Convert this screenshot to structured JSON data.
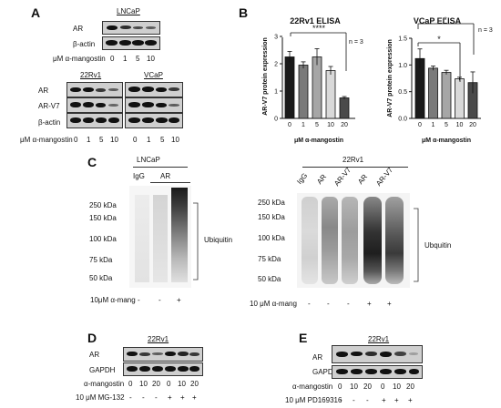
{
  "panels": {
    "A": "A",
    "B": "B",
    "C": "C",
    "D": "D",
    "E": "E"
  },
  "panelA": {
    "top_cell": "LNCaP",
    "top_rows": [
      "AR",
      "β-actin"
    ],
    "top_treatment": "μM α-mangostin",
    "top_doses": [
      "0",
      "1",
      "5",
      "10"
    ],
    "bottom_cells": [
      "22Rv1",
      "VCaP"
    ],
    "bottom_rows": [
      "AR",
      "AR-V7",
      "β-actin"
    ],
    "bottom_treatment": "μM α-mangostin",
    "bottom_doses": [
      "0",
      "1",
      "5",
      "10",
      "0",
      "1",
      "5",
      "10"
    ]
  },
  "chart_data": [
    {
      "type": "bar",
      "title": "22Rv1 ELISA",
      "xlabel": "μM α-mangostin",
      "ylabel": "AR-V7 protein expression",
      "categories": [
        "0",
        "1",
        "5",
        "10",
        "20"
      ],
      "values": [
        2.25,
        1.95,
        2.25,
        1.75,
        0.75
      ],
      "errors": [
        0.2,
        0.12,
        0.3,
        0.15,
        0.05
      ],
      "ylim": [
        0,
        3
      ],
      "yticks": [
        "0",
        "1",
        "2",
        "3"
      ],
      "significance": "****",
      "n_label": "n = 3",
      "colors": [
        "#1a1a1a",
        "#7a7a7a",
        "#a6a6a6",
        "#d9d9d9",
        "#4a4a4a"
      ]
    },
    {
      "type": "bar",
      "title": "VCaP ELISA",
      "xlabel": "μM α-mangostin",
      "ylabel": "AR-V7 protein expression",
      "categories": [
        "0",
        "1",
        "5",
        "10",
        "20"
      ],
      "values": [
        1.12,
        0.94,
        0.86,
        0.74,
        0.67
      ],
      "errors": [
        0.18,
        0.04,
        0.04,
        0.03,
        0.2
      ],
      "ylim": [
        0,
        1.5
      ],
      "yticks": [
        "0.0",
        "0.5",
        "1.0",
        "1.5"
      ],
      "significance": [
        "*",
        "*"
      ],
      "n_label": "n = 3",
      "colors": [
        "#1a1a1a",
        "#7a7a7a",
        "#a6a6a6",
        "#d9d9d9",
        "#4a4a4a"
      ]
    }
  ],
  "panelC": {
    "left_cell": "LNCaP",
    "left_lanes": [
      "IgG",
      "AR"
    ],
    "left_markers": [
      "250 kDa",
      "150 kDa",
      "100 kDa",
      "75 kDa",
      "50 kDa"
    ],
    "left_ubiquitin": "Ubiquitin",
    "left_treatment": "10μM α-mang",
    "left_signs": [
      "-",
      "-",
      "+"
    ],
    "right_cell": "22Rv1",
    "right_lanes": [
      "IgG",
      "AR",
      "AR-V7",
      "AR",
      "AR-V7"
    ],
    "right_markers": [
      "250 kDa",
      "150 kDa",
      "100 kDa",
      "75 kDa",
      "50 kDa"
    ],
    "right_ubiquitin": "Ubquitin",
    "right_treatment": "10 μM α-mang",
    "right_signs": [
      "-",
      "-",
      "-",
      "+",
      "+"
    ]
  },
  "panelD": {
    "cell": "22Rv1",
    "rows": [
      "AR",
      "GAPDH"
    ],
    "treatment1": "α-mangostin",
    "doses": [
      "0",
      "10",
      "20",
      "0",
      "10",
      "20"
    ],
    "treatment2": "10 μM MG-132",
    "signs": [
      "-",
      "-",
      "-",
      "+",
      "+",
      "+"
    ]
  },
  "panelE": {
    "cell": "22Rv1",
    "rows": [
      "AR",
      "GAPDH"
    ],
    "treatment1": "α-mangostin",
    "doses": [
      "0",
      "10",
      "20",
      "0",
      "10",
      "20"
    ],
    "treatment2": "10 μM PD169316",
    "signs": [
      "-",
      "-",
      "-",
      "+",
      "+",
      "+"
    ]
  }
}
